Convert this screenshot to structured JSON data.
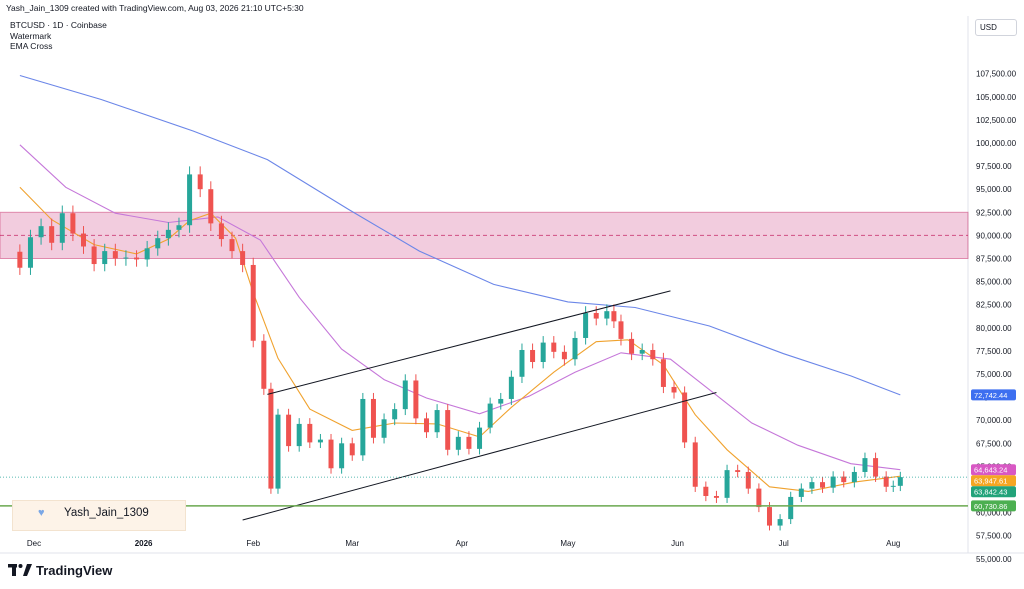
{
  "header": {
    "text": "Yash_Jain_1309 created with TradingView.com, Aug 03, 2026 21:10 UTC+5:30"
  },
  "legend": {
    "symbol": "BTCUSD · 1D · Coinbase",
    "item1": "Watermark",
    "item2": "EMA Cross"
  },
  "currency": "USD",
  "watermark": {
    "text": "Yash_Jain_1309",
    "icon": "heart-icon"
  },
  "logo": "TradingView",
  "colors": {
    "up": "#26a69a",
    "down": "#ef5350",
    "ema_fast": "#f0a22e",
    "ema_slow": "#c577d9",
    "ema_long": "#6b86e8",
    "zone": "#e8a3c2",
    "support": "#6aa84f"
  },
  "chart_data": {
    "type": "candlestick",
    "y_ticks": [
      "107,500.00",
      "105,000.00",
      "102,500.00",
      "100,000.00",
      "97,500.00",
      "95,000.00",
      "92,500.00",
      "90,000.00",
      "87,500.00",
      "85,000.00",
      "82,500.00",
      "80,000.00",
      "77,500.00",
      "75,000.00",
      "72,500.00",
      "70,000.00",
      "67,500.00",
      "65,000.00",
      "62,500.00",
      "60,000.00",
      "57,500.00",
      "55,000.00"
    ],
    "x_ticks": [
      "Dec",
      "2026",
      "Feb",
      "Mar",
      "Apr",
      "May",
      "Jun",
      "Jul",
      "Aug"
    ],
    "ylim": [
      53500,
      110700
    ],
    "price_labels": [
      {
        "text": "72,742.44",
        "value": 72742.44,
        "color": "#3d6ff0"
      },
      {
        "text": "64,643.24",
        "value": 64643.24,
        "color": "#d858c4"
      },
      {
        "text": "63,947.61",
        "value": 63947.61,
        "color": "#f5a623"
      },
      {
        "text": "63,842.43",
        "value": 63842.43,
        "color": "#22a37a"
      },
      {
        "text": "60,730.86",
        "value": 60730.86,
        "color": "#4caf50"
      }
    ],
    "resistance_zone": [
      87500,
      92500
    ],
    "zone_mid": 90000,
    "support_line": 60730.86,
    "channel_upper": [
      [
        "2026-02-05",
        72800
      ],
      [
        "2026-05-30",
        84000
      ]
    ],
    "channel_lower": [
      [
        "2026-01-29",
        59200
      ],
      [
        "2026-06-12",
        73000
      ]
    ],
    "closes": [
      {
        "d": "2025-11-27",
        "c": 86500
      },
      {
        "d": "2025-11-30",
        "c": 89800
      },
      {
        "d": "2025-12-03",
        "c": 91000
      },
      {
        "d": "2025-12-06",
        "c": 89200
      },
      {
        "d": "2025-12-09",
        "c": 92400
      },
      {
        "d": "2025-12-12",
        "c": 90200
      },
      {
        "d": "2025-12-15",
        "c": 88800
      },
      {
        "d": "2025-12-18",
        "c": 86900
      },
      {
        "d": "2025-12-21",
        "c": 88300
      },
      {
        "d": "2025-12-24",
        "c": 87500
      },
      {
        "d": "2025-12-27",
        "c": 87600
      },
      {
        "d": "2025-12-30",
        "c": 87400
      },
      {
        "d": "2026-01-02",
        "c": 88600
      },
      {
        "d": "2026-01-05",
        "c": 89700
      },
      {
        "d": "2026-01-08",
        "c": 90600
      },
      {
        "d": "2026-01-11",
        "c": 91100
      },
      {
        "d": "2026-01-14",
        "c": 96600
      },
      {
        "d": "2026-01-17",
        "c": 95000
      },
      {
        "d": "2026-01-20",
        "c": 91300
      },
      {
        "d": "2026-01-23",
        "c": 89600
      },
      {
        "d": "2026-01-26",
        "c": 88300
      },
      {
        "d": "2026-01-29",
        "c": 86800
      },
      {
        "d": "2026-02-01",
        "c": 78600
      },
      {
        "d": "2026-02-04",
        "c": 73400
      },
      {
        "d": "2026-02-06",
        "c": 62600
      },
      {
        "d": "2026-02-08",
        "c": 70600
      },
      {
        "d": "2026-02-11",
        "c": 67200
      },
      {
        "d": "2026-02-14",
        "c": 69600
      },
      {
        "d": "2026-02-17",
        "c": 67600
      },
      {
        "d": "2026-02-20",
        "c": 67900
      },
      {
        "d": "2026-02-23",
        "c": 64800
      },
      {
        "d": "2026-02-26",
        "c": 67500
      },
      {
        "d": "2026-03-01",
        "c": 66200
      },
      {
        "d": "2026-03-04",
        "c": 72300
      },
      {
        "d": "2026-03-07",
        "c": 68100
      },
      {
        "d": "2026-03-10",
        "c": 70100
      },
      {
        "d": "2026-03-13",
        "c": 71200
      },
      {
        "d": "2026-03-16",
        "c": 74300
      },
      {
        "d": "2026-03-19",
        "c": 70200
      },
      {
        "d": "2026-03-22",
        "c": 68700
      },
      {
        "d": "2026-03-25",
        "c": 71100
      },
      {
        "d": "2026-03-28",
        "c": 66800
      },
      {
        "d": "2026-03-31",
        "c": 68200
      },
      {
        "d": "2026-04-03",
        "c": 66900
      },
      {
        "d": "2026-04-06",
        "c": 69200
      },
      {
        "d": "2026-04-09",
        "c": 71800
      },
      {
        "d": "2026-04-12",
        "c": 72300
      },
      {
        "d": "2026-04-15",
        "c": 74700
      },
      {
        "d": "2026-04-18",
        "c": 77600
      },
      {
        "d": "2026-04-21",
        "c": 76300
      },
      {
        "d": "2026-04-24",
        "c": 78400
      },
      {
        "d": "2026-04-27",
        "c": 77400
      },
      {
        "d": "2026-04-30",
        "c": 76600
      },
      {
        "d": "2026-05-03",
        "c": 78900
      },
      {
        "d": "2026-05-06",
        "c": 81600
      },
      {
        "d": "2026-05-09",
        "c": 81000
      },
      {
        "d": "2026-05-12",
        "c": 81800
      },
      {
        "d": "2026-05-14",
        "c": 80700
      },
      {
        "d": "2026-05-16",
        "c": 78800
      },
      {
        "d": "2026-05-19",
        "c": 77200
      },
      {
        "d": "2026-05-22",
        "c": 77600
      },
      {
        "d": "2026-05-25",
        "c": 76600
      },
      {
        "d": "2026-05-28",
        "c": 73600
      },
      {
        "d": "2026-05-31",
        "c": 73000
      },
      {
        "d": "2026-06-03",
        "c": 67600
      },
      {
        "d": "2026-06-06",
        "c": 62800
      },
      {
        "d": "2026-06-09",
        "c": 61800
      },
      {
        "d": "2026-06-12",
        "c": 61600
      },
      {
        "d": "2026-06-15",
        "c": 64600
      },
      {
        "d": "2026-06-18",
        "c": 64400
      },
      {
        "d": "2026-06-21",
        "c": 62600
      },
      {
        "d": "2026-06-24",
        "c": 60600
      },
      {
        "d": "2026-06-27",
        "c": 58600
      },
      {
        "d": "2026-06-30",
        "c": 59300
      },
      {
        "d": "2026-07-03",
        "c": 61700
      },
      {
        "d": "2026-07-06",
        "c": 62600
      },
      {
        "d": "2026-07-09",
        "c": 63300
      },
      {
        "d": "2026-07-12",
        "c": 62700
      },
      {
        "d": "2026-07-15",
        "c": 63900
      },
      {
        "d": "2026-07-18",
        "c": 63300
      },
      {
        "d": "2026-07-21",
        "c": 64400
      },
      {
        "d": "2026-07-24",
        "c": 65900
      },
      {
        "d": "2026-07-27",
        "c": 63900
      },
      {
        "d": "2026-07-30",
        "c": 62800
      },
      {
        "d": "2026-08-01",
        "c": 62900
      },
      {
        "d": "2026-08-03",
        "c": 63842
      }
    ],
    "ema_fast": [
      {
        "d": "2025-11-27",
        "v": 95200
      },
      {
        "d": "2025-12-06",
        "v": 91700
      },
      {
        "d": "2025-12-18",
        "v": 89000
      },
      {
        "d": "2025-12-30",
        "v": 88000
      },
      {
        "d": "2026-01-08",
        "v": 89600
      },
      {
        "d": "2026-01-14",
        "v": 91600
      },
      {
        "d": "2026-01-20",
        "v": 92400
      },
      {
        "d": "2026-01-27",
        "v": 89700
      },
      {
        "d": "2026-02-01",
        "v": 83800
      },
      {
        "d": "2026-02-08",
        "v": 76700
      },
      {
        "d": "2026-02-17",
        "v": 71200
      },
      {
        "d": "2026-03-01",
        "v": 68900
      },
      {
        "d": "2026-03-13",
        "v": 69700
      },
      {
        "d": "2026-03-25",
        "v": 69600
      },
      {
        "d": "2026-04-06",
        "v": 68200
      },
      {
        "d": "2026-04-15",
        "v": 71400
      },
      {
        "d": "2026-04-27",
        "v": 75200
      },
      {
        "d": "2026-05-09",
        "v": 78500
      },
      {
        "d": "2026-05-18",
        "v": 78700
      },
      {
        "d": "2026-05-28",
        "v": 76000
      },
      {
        "d": "2026-06-06",
        "v": 70600
      },
      {
        "d": "2026-06-15",
        "v": 66800
      },
      {
        "d": "2026-06-27",
        "v": 62800
      },
      {
        "d": "2026-07-08",
        "v": 62300
      },
      {
        "d": "2026-07-21",
        "v": 63300
      },
      {
        "d": "2026-08-03",
        "v": 63947
      }
    ],
    "ema_slow": [
      {
        "d": "2025-11-27",
        "v": 99800
      },
      {
        "d": "2025-12-10",
        "v": 95200
      },
      {
        "d": "2025-12-24",
        "v": 92400
      },
      {
        "d": "2026-01-08",
        "v": 91400
      },
      {
        "d": "2026-01-22",
        "v": 92000
      },
      {
        "d": "2026-02-03",
        "v": 89500
      },
      {
        "d": "2026-02-14",
        "v": 83300
      },
      {
        "d": "2026-02-26",
        "v": 77700
      },
      {
        "d": "2026-03-10",
        "v": 74400
      },
      {
        "d": "2026-03-22",
        "v": 72400
      },
      {
        "d": "2026-04-06",
        "v": 70700
      },
      {
        "d": "2026-04-20",
        "v": 72600
      },
      {
        "d": "2026-05-03",
        "v": 75200
      },
      {
        "d": "2026-05-16",
        "v": 77300
      },
      {
        "d": "2026-05-30",
        "v": 76600
      },
      {
        "d": "2026-06-10",
        "v": 73300
      },
      {
        "d": "2026-06-22",
        "v": 69700
      },
      {
        "d": "2026-07-05",
        "v": 67300
      },
      {
        "d": "2026-07-20",
        "v": 65300
      },
      {
        "d": "2026-08-03",
        "v": 64643
      }
    ],
    "ema_long": [
      {
        "d": "2025-11-27",
        "v": 107300
      },
      {
        "d": "2025-12-20",
        "v": 104700
      },
      {
        "d": "2026-01-15",
        "v": 101300
      },
      {
        "d": "2026-02-05",
        "v": 98200
      },
      {
        "d": "2026-02-28",
        "v": 92800
      },
      {
        "d": "2026-03-20",
        "v": 88300
      },
      {
        "d": "2026-04-10",
        "v": 84700
      },
      {
        "d": "2026-05-01",
        "v": 82800
      },
      {
        "d": "2026-05-20",
        "v": 82200
      },
      {
        "d": "2026-06-10",
        "v": 80200
      },
      {
        "d": "2026-07-01",
        "v": 77200
      },
      {
        "d": "2026-07-20",
        "v": 74800
      },
      {
        "d": "2026-08-03",
        "v": 72742
      }
    ]
  }
}
